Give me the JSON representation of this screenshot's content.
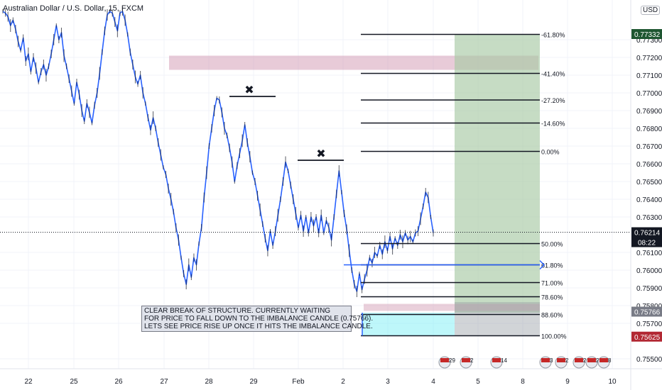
{
  "header": {
    "symbol_title": "Australian Dollar / U.S. Dollar, 15, FXCM",
    "currency": "USD"
  },
  "colors": {
    "candle": "#2962ff",
    "price_tag_dark": "#131722",
    "target_tag": "#1e5631",
    "imbalance_tag": "#787b86",
    "stop_tag": "#b22833",
    "profit_zone": "#a7c9a4",
    "imbalance_zone": "#d6a1b8",
    "stop_zone": "#7ef0f5"
  },
  "annotation": {
    "lines": [
      "CLEAR BREAK OF STRUCTURE. CURRENTLY WAITING",
      "FOR PRICE TO FALL DOWN TO THE IMBALANCE CANDLE (0.75766).",
      "LETS SEE PRICE RISE UP ONCE IT HITS THE IMBALANCE CANDLE."
    ]
  },
  "chart_data": {
    "type": "line",
    "y_axis": {
      "min": 0.755,
      "max": 0.7746,
      "ticks": [
        "0.77300",
        "0.77200",
        "0.77100",
        "0.77000",
        "0.76900",
        "0.76800",
        "0.76700",
        "0.76600",
        "0.76500",
        "0.76400",
        "0.76300",
        "0.76100",
        "0.76000",
        "0.75900",
        "0.75800",
        "0.75700",
        "0.75500"
      ]
    },
    "x_axis": {
      "ticks": [
        "22",
        "25",
        "26",
        "27",
        "28",
        "29",
        "Feb",
        "2",
        "3",
        "4",
        "5",
        "8",
        "9",
        "10"
      ]
    },
    "price_tags": [
      {
        "label": "0.77332",
        "value": 0.77332,
        "color": "#1e5631"
      },
      {
        "label": "0.76214",
        "value": 0.76214,
        "color": "#131722",
        "countdown": "08:22"
      },
      {
        "label": "0.75766",
        "value": 0.75766,
        "color": "#787b86"
      },
      {
        "label": "0.75625",
        "value": 0.75625,
        "color": "#b22833"
      }
    ],
    "fib_levels": [
      {
        "label": "-61.80%",
        "value": 0.7733
      },
      {
        "label": "-41.40%",
        "value": 0.7711
      },
      {
        "label": "-27.20%",
        "value": 0.7696
      },
      {
        "label": "-14.60%",
        "value": 0.7683
      },
      {
        "label": "0.00%",
        "value": 0.7667
      },
      {
        "label": "50.00%",
        "value": 0.7615
      },
      {
        "label": "61.80%",
        "value": 0.7603
      },
      {
        "label": "71.00%",
        "value": 0.7593
      },
      {
        "label": "78.60%",
        "value": 0.7585
      },
      {
        "label": "88.60%",
        "value": 0.7575
      },
      {
        "label": "100.00%",
        "value": 0.7563
      }
    ],
    "zones": [
      {
        "kind": "imbalance_top",
        "from": 0.7721,
        "to": 0.7713
      },
      {
        "kind": "profit",
        "from": 0.7733,
        "to": 0.7576
      },
      {
        "kind": "imbalance_low",
        "from": 0.7581,
        "to": 0.7577
      },
      {
        "kind": "stop",
        "from": 0.7576,
        "to": 0.7563
      }
    ],
    "swing_marks": [
      {
        "label": "✖",
        "value": 0.7698
      },
      {
        "label": "✖",
        "value": 0.7662
      }
    ],
    "price_path": [
      [
        0.7746,
        0.7745,
        0.7743,
        0.7738,
        0.7741,
        0.7736,
        0.7729,
        0.7724,
        0.7731,
        0.7718,
        0.7722,
        0.7712,
        0.772,
        0.7714,
        0.7706,
        0.7712,
        0.7716,
        0.771,
        0.7715,
        0.7722,
        0.773,
        0.7738,
        0.773,
        0.7734,
        0.7721,
        0.7715,
        0.7708,
        0.7701,
        0.7694,
        0.7706,
        0.7699,
        0.769,
        0.7684,
        0.7694,
        0.7689,
        0.7683,
        0.7693,
        0.77,
        0.7711,
        0.7723,
        0.7735,
        0.7744,
        0.7746,
        0.7745,
        0.774,
        0.7735,
        0.7745,
        0.7746,
        0.7741,
        0.7733,
        0.7723,
        0.7716,
        0.7709,
        0.7705,
        0.771,
        0.77,
        0.7694,
        0.7686,
        0.7679,
        0.7686,
        0.768,
        0.7672,
        0.7665,
        0.7658,
        0.7654,
        0.7646,
        0.764,
        0.7633,
        0.7624,
        0.7617,
        0.7607,
        0.7598,
        0.7592,
        0.7603,
        0.7596,
        0.7607,
        0.7603,
        0.7615,
        0.7624,
        0.7641,
        0.7655,
        0.767,
        0.768,
        0.769,
        0.7697,
        0.7696,
        0.7689,
        0.768,
        0.7676,
        0.7669,
        0.7661,
        0.765,
        0.7659,
        0.7666,
        0.7673,
        0.7682,
        0.7672,
        0.7664,
        0.7655,
        0.765,
        0.7642,
        0.7634,
        0.7626,
        0.7618,
        0.7611,
        0.7622,
        0.7614,
        0.7622,
        0.7631,
        0.764,
        0.765,
        0.7661,
        0.7656,
        0.7648,
        0.764,
        0.7632,
        0.7624,
        0.7631,
        0.7622,
        0.763,
        0.7621,
        0.763,
        0.7625,
        0.763,
        0.7621,
        0.7631,
        0.7621,
        0.7628,
        0.7624,
        0.7617,
        0.763,
        0.7643,
        0.7656,
        0.7644,
        0.7632,
        0.7623,
        0.7611,
        0.76,
        0.7592,
        0.7588,
        0.7598,
        0.7589,
        0.7595,
        0.76,
        0.7607,
        0.7604,
        0.761,
        0.7608,
        0.7614,
        0.7609,
        0.7616,
        0.7611,
        0.7619,
        0.7612,
        0.7618,
        0.7614,
        0.762,
        0.7616,
        0.7621,
        0.7617,
        0.7619,
        0.7616,
        0.7621,
        0.7622,
        0.7629,
        0.7636,
        0.7644,
        0.7641,
        0.763,
        0.7621
      ]
    ]
  }
}
